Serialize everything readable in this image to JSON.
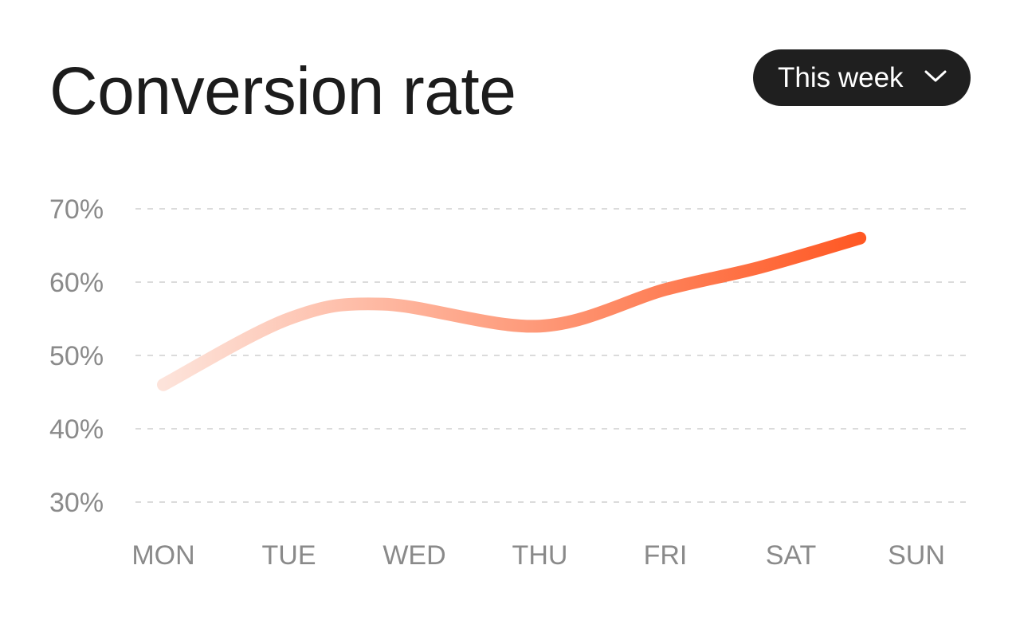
{
  "title": "Conversion rate",
  "period_selector": {
    "selected": "This week",
    "icon": "chevron-down-icon"
  },
  "colors": {
    "line_start": "#fde3da",
    "line_end": "#ff5722",
    "grid": "#cfcfcf",
    "tick_text": "#8a8a8a",
    "title": "#1c1c1c",
    "button_bg": "#1f1f1f"
  },
  "chart_data": {
    "type": "line",
    "categories": [
      "MON",
      "TUE",
      "WED",
      "THU",
      "FRI",
      "SAT",
      "SUN"
    ],
    "x_ticks": [
      "MON",
      "TUE",
      "WED",
      "THU",
      "FRI",
      "SAT",
      "SUN"
    ],
    "y_ticks": [
      "70%",
      "60%",
      "50%",
      "40%",
      "30%"
    ],
    "y_tick_values": [
      70,
      60,
      50,
      40,
      30
    ],
    "ylim": [
      30,
      70
    ],
    "grid": true,
    "grid_style": "dashed",
    "series": [
      {
        "x": [
          "MON",
          "TUE",
          "WED",
          "THU",
          "FRI",
          "SAT",
          "SAT-SUN"
        ],
        "x_pos": [
          0,
          1,
          1.75,
          3,
          4,
          4.75,
          5.55
        ],
        "values": [
          46,
          55,
          57,
          54,
          59,
          62,
          66
        ]
      }
    ]
  }
}
